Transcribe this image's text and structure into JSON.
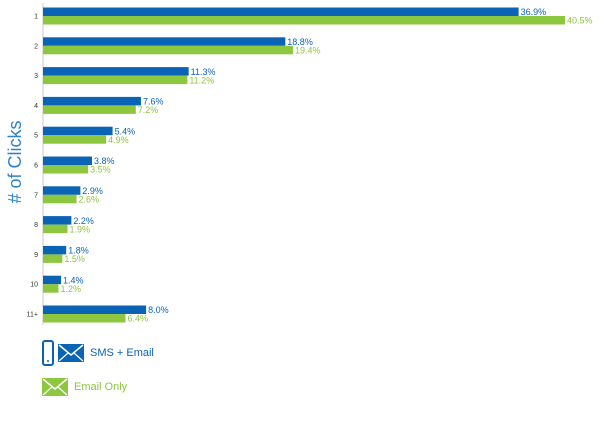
{
  "colors": {
    "sms_email": "#0b63b6",
    "email_only": "#8dc63f",
    "axis": "#c9c9c9",
    "ylabel": "#2f83c8",
    "category_text": "#333333"
  },
  "chart_data": {
    "type": "bar",
    "orientation": "horizontal",
    "ylabel": "# of Clicks",
    "xlabel": "",
    "xlim": [
      0,
      40.5
    ],
    "grid": false,
    "legend_position": "bottom-left",
    "categories": [
      "1",
      "2",
      "3",
      "4",
      "5",
      "6",
      "7",
      "8",
      "9",
      "10",
      "11+"
    ],
    "series": [
      {
        "name": "SMS + Email",
        "color": "#0b63b6",
        "values": [
          36.9,
          18.8,
          11.3,
          7.6,
          5.4,
          3.8,
          2.9,
          2.2,
          1.8,
          1.4,
          8.0
        ],
        "labels": [
          "36.9%",
          "18.8%",
          "11.3%",
          "7.6%",
          "5.4%",
          "3.8%",
          "2.9%",
          "2.2%",
          "1.8%",
          "1.4%",
          "8.0%"
        ]
      },
      {
        "name": "Email Only",
        "color": "#8dc63f",
        "values": [
          40.5,
          19.4,
          11.2,
          7.2,
          4.9,
          3.5,
          2.6,
          1.9,
          1.5,
          1.2,
          6.4
        ],
        "labels": [
          "40.5%",
          "19.4%",
          "11.2%",
          "7.2%",
          "4.9%",
          "3.5%",
          "2.6%",
          "1.9%",
          "1.5%",
          "1.2%",
          "6.4%"
        ]
      }
    ]
  },
  "legend": {
    "sms_email": {
      "label": "SMS + Email",
      "icons": [
        "phone-icon",
        "envelope-icon"
      ]
    },
    "email_only": {
      "label": "Email Only",
      "icons": [
        "envelope-icon"
      ]
    }
  }
}
